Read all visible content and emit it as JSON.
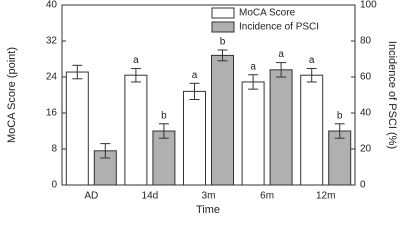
{
  "chart_data": {
    "type": "bar",
    "x_label": "Time",
    "y_label": "MoCA Score (point)",
    "y2_label": "Incidence of PSCI (%)",
    "categories": [
      "AD",
      "14d",
      "3m",
      "6m",
      "12m"
    ],
    "series": [
      {
        "name": "MoCA Score",
        "color": "#ffffff",
        "values": [
          25.1,
          24.4,
          20.8,
          22.9,
          24.4
        ],
        "errors": [
          1.5,
          1.5,
          1.8,
          1.6,
          1.5
        ],
        "annotations": [
          null,
          "a",
          "a",
          "a",
          "a"
        ]
      },
      {
        "name": "Incidence of PSCI",
        "color": "#b0b0b0",
        "axis": "y2",
        "values": [
          19,
          30,
          72,
          64,
          30
        ],
        "errors": [
          4,
          4,
          3,
          4,
          4
        ],
        "annotations": [
          null,
          "b",
          "b",
          "a",
          "b"
        ]
      }
    ],
    "ylim": [
      0,
      40
    ],
    "yticks": [
      0,
      8,
      16,
      24,
      32,
      40
    ],
    "y2lim": [
      0,
      100
    ],
    "y2ticks": [
      0,
      20,
      40,
      60,
      80,
      100
    ],
    "legend": "top-right"
  }
}
